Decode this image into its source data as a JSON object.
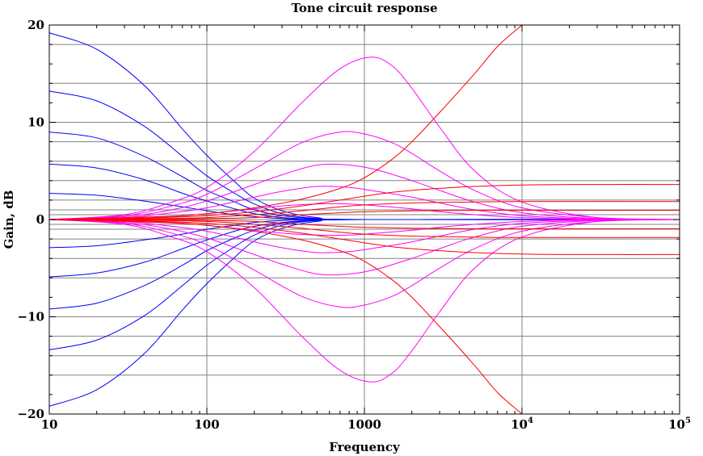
{
  "chart_data": {
    "type": "line",
    "title": "Tone circuit response",
    "xlabel": "Frequency",
    "ylabel": "Gain, dB",
    "x_scale": "log",
    "xlim": [
      10,
      100000
    ],
    "ylim": [
      -20,
      20
    ],
    "grid": true,
    "legend": "none",
    "x_ticks": [
      {
        "value": 10,
        "label": "10"
      },
      {
        "value": 100,
        "label": "100"
      },
      {
        "value": 1000,
        "label": "1000"
      },
      {
        "value": 10000,
        "label": "10^4",
        "base": "10",
        "exp": "4"
      },
      {
        "value": 100000,
        "label": "10^5",
        "base": "10",
        "exp": "5"
      }
    ],
    "y_ticks": [
      {
        "value": 20,
        "label": "20"
      },
      {
        "value": 10,
        "label": "10"
      },
      {
        "value": 0,
        "label": "0"
      },
      {
        "value": -10,
        "label": "−10"
      },
      {
        "value": -20,
        "label": "−20"
      }
    ],
    "y_grid_lines": [
      18,
      14,
      10,
      8,
      6,
      4,
      2,
      1,
      0.5,
      0,
      -0.5,
      -1,
      -2,
      -4,
      -6,
      -10,
      -12,
      -14,
      -16
    ],
    "colors": {
      "bass": "#0000ff",
      "mid": "#ff00ff",
      "treble": "#ff0000",
      "grid": "#808080"
    },
    "series": [
      {
        "group": "bass",
        "x": [
          10,
          20,
          40,
          70,
          100,
          150,
          200,
          300,
          500,
          1000,
          100000
        ],
        "y": [
          19.2,
          17.5,
          13.8,
          9.3,
          6.6,
          3.9,
          2.2,
          0.9,
          0.2,
          0,
          0
        ]
      },
      {
        "group": "bass",
        "x": [
          10,
          20,
          40,
          70,
          100,
          150,
          200,
          300,
          500,
          1000,
          100000
        ],
        "y": [
          13.2,
          12.2,
          9.6,
          6.5,
          4.5,
          2.7,
          1.6,
          0.6,
          0.1,
          0,
          0
        ]
      },
      {
        "group": "bass",
        "x": [
          10,
          20,
          40,
          70,
          100,
          150,
          200,
          300,
          500,
          1000,
          100000
        ],
        "y": [
          9.0,
          8.4,
          6.5,
          4.4,
          3.0,
          1.8,
          1.0,
          0.4,
          0.1,
          0,
          0
        ]
      },
      {
        "group": "bass",
        "x": [
          10,
          20,
          40,
          70,
          100,
          150,
          200,
          300,
          500,
          1000,
          100000
        ],
        "y": [
          5.7,
          5.3,
          4.1,
          2.7,
          1.9,
          1.1,
          0.6,
          0.2,
          0.05,
          0,
          0
        ]
      },
      {
        "group": "bass",
        "x": [
          10,
          20,
          40,
          70,
          100,
          150,
          200,
          300,
          500,
          1000,
          100000
        ],
        "y": [
          2.7,
          2.5,
          1.9,
          1.3,
          0.9,
          0.5,
          0.3,
          0.1,
          0,
          0,
          0
        ]
      },
      {
        "group": "bass",
        "x": [
          10,
          20,
          40,
          70,
          100,
          150,
          200,
          300,
          500,
          1000,
          100000
        ],
        "y": [
          -2.9,
          -2.7,
          -2.1,
          -1.5,
          -1.0,
          -0.6,
          -0.3,
          -0.1,
          0,
          0,
          0
        ]
      },
      {
        "group": "bass",
        "x": [
          10,
          20,
          40,
          70,
          100,
          150,
          200,
          300,
          500,
          1000,
          100000
        ],
        "y": [
          -5.9,
          -5.5,
          -4.4,
          -3.0,
          -2.1,
          -1.2,
          -0.7,
          -0.3,
          -0.05,
          0,
          0
        ]
      },
      {
        "group": "bass",
        "x": [
          10,
          20,
          40,
          70,
          100,
          150,
          200,
          300,
          500,
          1000,
          100000
        ],
        "y": [
          -9.2,
          -8.6,
          -6.8,
          -4.7,
          -3.2,
          -1.9,
          -1.1,
          -0.4,
          -0.1,
          0,
          0
        ]
      },
      {
        "group": "bass",
        "x": [
          10,
          20,
          40,
          70,
          100,
          150,
          200,
          300,
          500,
          1000,
          100000
        ],
        "y": [
          -13.4,
          -12.4,
          -9.9,
          -6.8,
          -4.7,
          -2.8,
          -1.6,
          -0.6,
          -0.1,
          0,
          0
        ]
      },
      {
        "group": "bass",
        "x": [
          10,
          20,
          40,
          70,
          100,
          150,
          200,
          300,
          500,
          1000,
          100000
        ],
        "y": [
          -19.2,
          -17.5,
          -13.8,
          -9.3,
          -6.6,
          -3.9,
          -2.2,
          -0.9,
          -0.2,
          0,
          0
        ]
      },
      {
        "group": "mid",
        "x": [
          10,
          30,
          60,
          100,
          200,
          400,
          700,
          1100,
          1500,
          2000,
          3000,
          5000,
          10000,
          30000,
          100000
        ],
        "y": [
          0,
          0.5,
          1.8,
          3.3,
          7.0,
          12.0,
          15.5,
          16.7,
          15.8,
          13.5,
          9.5,
          5.0,
          1.8,
          0.2,
          0
        ]
      },
      {
        "group": "mid",
        "x": [
          10,
          30,
          60,
          100,
          200,
          400,
          700,
          1000,
          1500,
          2000,
          3000,
          5000,
          10000,
          30000,
          100000
        ],
        "y": [
          0,
          0.4,
          1.4,
          2.6,
          5.2,
          7.9,
          9.0,
          8.8,
          7.9,
          6.8,
          5.0,
          3.0,
          1.2,
          0.2,
          0
        ]
      },
      {
        "group": "mid",
        "x": [
          10,
          30,
          60,
          100,
          200,
          300,
          500,
          800,
          1200,
          2000,
          3000,
          5000,
          10000,
          30000,
          100000
        ],
        "y": [
          0,
          0.3,
          1.0,
          1.9,
          3.6,
          4.6,
          5.6,
          5.6,
          5.1,
          4.0,
          3.0,
          1.8,
          0.7,
          0.1,
          0
        ]
      },
      {
        "group": "mid",
        "x": [
          10,
          30,
          60,
          100,
          200,
          300,
          500,
          800,
          1200,
          2000,
          3000,
          5000,
          10000,
          30000,
          100000
        ],
        "y": [
          0,
          0.2,
          0.7,
          1.2,
          2.3,
          2.9,
          3.4,
          3.3,
          2.9,
          2.3,
          1.7,
          1.0,
          0.4,
          0.05,
          0
        ]
      },
      {
        "group": "mid",
        "x": [
          10,
          30,
          60,
          100,
          200,
          300,
          500,
          800,
          1200,
          2000,
          3000,
          5000,
          10000,
          30000,
          100000
        ],
        "y": [
          0,
          0.1,
          0.3,
          0.6,
          1.1,
          1.4,
          1.6,
          1.6,
          1.4,
          1.1,
          0.8,
          0.5,
          0.2,
          0,
          0
        ]
      },
      {
        "group": "mid",
        "x": [
          10,
          30,
          60,
          100,
          200,
          300,
          500,
          800,
          1200,
          2000,
          3000,
          5000,
          10000,
          30000,
          100000
        ],
        "y": [
          0,
          -0.1,
          -0.3,
          -0.6,
          -1.1,
          -1.4,
          -1.6,
          -1.6,
          -1.4,
          -1.1,
          -0.8,
          -0.5,
          -0.2,
          0,
          0
        ]
      },
      {
        "group": "mid",
        "x": [
          10,
          30,
          60,
          100,
          200,
          300,
          500,
          800,
          1200,
          2000,
          3000,
          5000,
          10000,
          30000,
          100000
        ],
        "y": [
          0,
          -0.2,
          -0.7,
          -1.2,
          -2.3,
          -2.9,
          -3.4,
          -3.3,
          -2.9,
          -2.3,
          -1.7,
          -1.0,
          -0.4,
          -0.05,
          0
        ]
      },
      {
        "group": "mid",
        "x": [
          10,
          30,
          60,
          100,
          200,
          300,
          500,
          800,
          1200,
          2000,
          3000,
          5000,
          10000,
          30000,
          100000
        ],
        "y": [
          0,
          -0.3,
          -1.0,
          -1.9,
          -3.6,
          -4.6,
          -5.6,
          -5.6,
          -5.1,
          -4.0,
          -3.0,
          -1.8,
          -0.7,
          -0.1,
          0
        ]
      },
      {
        "group": "mid",
        "x": [
          10,
          30,
          60,
          100,
          200,
          400,
          700,
          1000,
          1500,
          2000,
          3000,
          5000,
          10000,
          30000,
          100000
        ],
        "y": [
          0,
          -0.4,
          -1.4,
          -2.6,
          -5.2,
          -7.9,
          -9.0,
          -8.8,
          -7.9,
          -6.8,
          -5.0,
          -3.0,
          -1.2,
          -0.2,
          0
        ]
      },
      {
        "group": "mid",
        "x": [
          10,
          30,
          60,
          100,
          200,
          400,
          700,
          1100,
          1500,
          2000,
          3000,
          5000,
          10000,
          30000,
          100000
        ],
        "y": [
          0,
          -0.5,
          -1.8,
          -3.3,
          -7.0,
          -12.0,
          -15.5,
          -16.7,
          -15.8,
          -13.5,
          -9.5,
          -5.0,
          -1.8,
          -0.2,
          0
        ]
      },
      {
        "group": "treble",
        "x": [
          10,
          50,
          100,
          200,
          400,
          700,
          1000,
          1500,
          2000,
          3000,
          5000,
          7000,
          10000
        ],
        "y": [
          0,
          0.3,
          0.6,
          1.2,
          2.1,
          3.2,
          4.3,
          6.2,
          8.0,
          11.0,
          15.0,
          17.8,
          20.0
        ]
      },
      {
        "group": "treble",
        "x": [
          10,
          50,
          100,
          200,
          400,
          700,
          1000,
          1500,
          2000,
          3000,
          5000,
          10000,
          20000,
          100000
        ],
        "y": [
          0,
          0.2,
          0.4,
          0.8,
          1.4,
          2.0,
          2.4,
          2.8,
          3.0,
          3.2,
          3.4,
          3.55,
          3.6,
          3.6
        ]
      },
      {
        "group": "treble",
        "x": [
          10,
          50,
          100,
          200,
          400,
          700,
          1000,
          2000,
          5000,
          10000,
          100000
        ],
        "y": [
          0,
          0.1,
          0.2,
          0.5,
          0.9,
          1.3,
          1.5,
          1.7,
          1.8,
          1.85,
          1.85
        ]
      },
      {
        "group": "treble",
        "x": [
          10,
          50,
          100,
          200,
          400,
          700,
          1000,
          2000,
          5000,
          10000,
          100000
        ],
        "y": [
          0,
          0.05,
          0.1,
          0.2,
          0.5,
          0.7,
          0.8,
          0.9,
          0.95,
          0.95,
          0.95
        ]
      },
      {
        "group": "treble",
        "x": [
          10,
          50,
          100,
          200,
          400,
          700,
          1000,
          2000,
          5000,
          10000,
          100000
        ],
        "y": [
          0,
          -0.05,
          -0.1,
          -0.2,
          -0.5,
          -0.7,
          -0.8,
          -0.9,
          -0.95,
          -0.95,
          -0.95
        ]
      },
      {
        "group": "treble",
        "x": [
          10,
          50,
          100,
          200,
          400,
          700,
          1000,
          2000,
          5000,
          10000,
          100000
        ],
        "y": [
          0,
          -0.1,
          -0.2,
          -0.5,
          -0.9,
          -1.3,
          -1.5,
          -1.7,
          -1.8,
          -1.85,
          -1.85
        ]
      },
      {
        "group": "treble",
        "x": [
          10,
          50,
          100,
          200,
          400,
          700,
          1000,
          1500,
          2000,
          3000,
          5000,
          10000,
          20000,
          100000
        ],
        "y": [
          0,
          -0.2,
          -0.4,
          -0.8,
          -1.4,
          -2.0,
          -2.4,
          -2.8,
          -3.0,
          -3.2,
          -3.4,
          -3.55,
          -3.6,
          -3.6
        ]
      },
      {
        "group": "treble",
        "x": [
          10,
          50,
          100,
          200,
          400,
          700,
          1000,
          1500,
          2000,
          3000,
          5000,
          7000,
          10000
        ],
        "y": [
          0,
          -0.3,
          -0.6,
          -1.2,
          -2.1,
          -3.2,
          -4.3,
          -6.2,
          -8.0,
          -11.0,
          -15.0,
          -17.8,
          -20.0
        ]
      }
    ]
  }
}
